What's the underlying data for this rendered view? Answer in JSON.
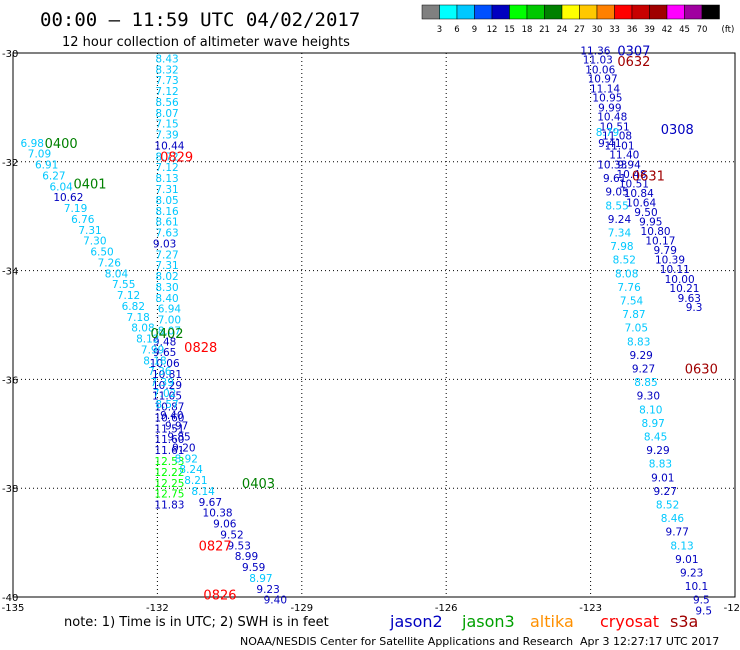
{
  "header": {
    "title": "00:00 – 11:59 UTC 04/02/2017",
    "subtitle": "12 hour collection of altimeter wave heights"
  },
  "legend": {
    "colors": [
      "#808080",
      "#00ffff",
      "#00c8ff",
      "#0050ff",
      "#0000c0",
      "#00ff00",
      "#00c800",
      "#008000",
      "#ffff00",
      "#ffc800",
      "#ff8000",
      "#ff0000",
      "#c80000",
      "#a00000",
      "#ff00ff",
      "#a000a0",
      "#000000"
    ],
    "labels": [
      "3",
      "6",
      "9",
      "12",
      "15",
      "18",
      "21",
      "24",
      "27",
      "30",
      "33",
      "36",
      "39",
      "42",
      "45",
      "70"
    ],
    "unit": "(ft)"
  },
  "axes": {
    "lat_labels": [
      "-30",
      "-32",
      "-34",
      "-36",
      "-38",
      "-40"
    ],
    "lon_labels": [
      "-135",
      "-132",
      "-129",
      "-126",
      "-123",
      "-120"
    ]
  },
  "time_labels": [
    {
      "text": "0400",
      "color": "#008000",
      "lon": -134.0,
      "lat": -31.65
    },
    {
      "text": "0401",
      "color": "#008000",
      "lon": -133.4,
      "lat": -32.4
    },
    {
      "text": "0402",
      "color": "#008000",
      "lon": -131.8,
      "lat": -35.15
    },
    {
      "text": "0403",
      "color": "#008000",
      "lon": -129.9,
      "lat": -37.9
    },
    {
      "text": "0829",
      "color": "#ff0000",
      "lon": -131.6,
      "lat": -31.9
    },
    {
      "text": "0828",
      "color": "#ff0000",
      "lon": -131.1,
      "lat": -35.4
    },
    {
      "text": "0827",
      "color": "#ff0000",
      "lon": -130.8,
      "lat": -39.05
    },
    {
      "text": "0826",
      "color": "#ff0000",
      "lon": -130.7,
      "lat": -39.95
    },
    {
      "text": "0307",
      "color": "#0000c0",
      "lon": -122.1,
      "lat": -29.95
    },
    {
      "text": "0308",
      "color": "#0000c0",
      "lon": -121.2,
      "lat": -31.4
    },
    {
      "text": "0632",
      "color": "#a00000",
      "lon": -122.1,
      "lat": -30.15
    },
    {
      "text": "0631",
      "color": "#a00000",
      "lon": -121.8,
      "lat": -32.25
    },
    {
      "text": "0630",
      "color": "#a00000",
      "lon": -120.7,
      "lat": -35.8
    }
  ],
  "tracks": [
    {
      "name": "track-cryosat-0829",
      "points": [
        [
          "8.43",
          "#00c8ff",
          -131.8,
          -30.1
        ],
        [
          "8.32",
          "#00c8ff",
          -131.8,
          -30.3
        ],
        [
          "7.73",
          "#00c8ff",
          -131.8,
          -30.5
        ],
        [
          "7.12",
          "#00c8ff",
          -131.8,
          -30.7
        ],
        [
          "8.56",
          "#00c8ff",
          -131.8,
          -30.9
        ],
        [
          "8.07",
          "#00c8ff",
          -131.8,
          -31.1
        ],
        [
          "7.15",
          "#00c8ff",
          -131.8,
          -31.3
        ],
        [
          "7.39",
          "#00c8ff",
          -131.8,
          -31.5
        ],
        [
          "10.44",
          "#0000c0",
          -131.75,
          -31.7
        ],
        [
          "8.72",
          "#00c8ff",
          -131.8,
          -31.9
        ],
        [
          "7.12",
          "#00c8ff",
          -131.8,
          -32.1
        ],
        [
          "8.13",
          "#00c8ff",
          -131.8,
          -32.3
        ],
        [
          "7.31",
          "#00c8ff",
          -131.8,
          -32.5
        ],
        [
          "8.05",
          "#00c8ff",
          -131.8,
          -32.7
        ],
        [
          "8.16",
          "#00c8ff",
          -131.8,
          -32.9
        ],
        [
          "8.61",
          "#00c8ff",
          -131.8,
          -33.1
        ],
        [
          "7.63",
          "#00c8ff",
          -131.8,
          -33.3
        ],
        [
          "9.03",
          "#0000c0",
          -131.85,
          -33.5
        ],
        [
          "7.27",
          "#00c8ff",
          -131.8,
          -33.7
        ],
        [
          "7.31",
          "#00c8ff",
          -131.8,
          -33.9
        ],
        [
          "8.02",
          "#00c8ff",
          -131.8,
          -34.1
        ],
        [
          "8.30",
          "#00c8ff",
          -131.8,
          -34.3
        ],
        [
          "8.40",
          "#00c8ff",
          -131.8,
          -34.5
        ],
        [
          "6.94",
          "#00c8ff",
          -131.75,
          -34.7
        ],
        [
          "7.00",
          "#00c8ff",
          -131.75,
          -34.9
        ],
        [
          "8.07",
          "#00c8ff",
          -131.75,
          -35.1
        ],
        [
          "9.48",
          "#0000c0",
          -131.85,
          -35.3
        ],
        [
          "9.65",
          "#0000c0",
          -131.85,
          -35.5
        ],
        [
          "10.06",
          "#0000c0",
          -131.85,
          -35.7
        ],
        [
          "10.81",
          "#0000c0",
          -131.8,
          -35.9
        ],
        [
          "10.29",
          "#0000c0",
          -131.8,
          -36.1
        ],
        [
          "11.05",
          "#0000c0",
          -131.8,
          -36.3
        ],
        [
          "10.87",
          "#0000c0",
          -131.75,
          -36.5
        ],
        [
          "10.60",
          "#0000c0",
          -131.75,
          -36.7
        ],
        [
          "11.51",
          "#0000c0",
          -131.75,
          -36.9
        ],
        [
          "11.60",
          "#0000c0",
          -131.75,
          -37.1
        ],
        [
          "11.61",
          "#0000c0",
          -131.75,
          -37.3
        ],
        [
          "12.53",
          "#00ff00",
          -131.75,
          -37.5
        ],
        [
          "12.22",
          "#00ff00",
          -131.75,
          -37.7
        ],
        [
          "12.25",
          "#00ff00",
          -131.75,
          -37.9
        ],
        [
          "12.75",
          "#00ff00",
          -131.75,
          -38.1
        ],
        [
          "11.83",
          "#0000c0",
          -131.75,
          -38.3
        ]
      ]
    },
    {
      "name": "track-jason3-0400",
      "points": [
        [
          "6.98",
          "#00c8ff",
          -134.6,
          -31.65
        ],
        [
          "7.09",
          "#00c8ff",
          -134.45,
          -31.85
        ],
        [
          "6.91",
          "#00c8ff",
          -134.3,
          -32.05
        ],
        [
          "6.27",
          "#00c8ff",
          -134.15,
          -32.25
        ],
        [
          "6.04",
          "#00c8ff",
          -134.0,
          -32.45
        ],
        [
          "10.62",
          "#0000c0",
          -133.85,
          -32.65
        ],
        [
          "7.19",
          "#00c8ff",
          -133.7,
          -32.85
        ],
        [
          "6.76",
          "#00c8ff",
          -133.55,
          -33.05
        ],
        [
          "7.31",
          "#00c8ff",
          -133.4,
          -33.25
        ],
        [
          "7.30",
          "#00c8ff",
          -133.3,
          -33.45
        ],
        [
          "6.50",
          "#00c8ff",
          -133.15,
          -33.65
        ],
        [
          "7.26",
          "#00c8ff",
          -133.0,
          -33.85
        ],
        [
          "8.04",
          "#00c8ff",
          -132.85,
          -34.05
        ],
        [
          "7.55",
          "#00c8ff",
          -132.7,
          -34.25
        ],
        [
          "7.12",
          "#00c8ff",
          -132.6,
          -34.45
        ],
        [
          "6.82",
          "#00c8ff",
          -132.5,
          -34.65
        ],
        [
          "7.18",
          "#00c8ff",
          -132.4,
          -34.85
        ],
        [
          "8.08",
          "#00c8ff",
          -132.3,
          -35.05
        ],
        [
          "8.12",
          "#00c8ff",
          -132.2,
          -35.25
        ],
        [
          "7.99",
          "#00c8ff",
          -132.1,
          -35.45
        ],
        [
          "8.18",
          "#00c8ff",
          -132.05,
          -35.65
        ],
        [
          "7.36",
          "#00c8ff",
          -131.95,
          -35.85
        ],
        [
          "7.39",
          "#00c8ff",
          -131.9,
          -36.05
        ],
        [
          "7.02",
          "#00c8ff",
          -131.85,
          -36.25
        ],
        [
          "8.57",
          "#00c8ff",
          -131.8,
          -36.45
        ],
        [
          "9.40",
          "#0000c0",
          -131.7,
          -36.65
        ],
        [
          "9.97",
          "#0000c0",
          -131.6,
          -36.85
        ],
        [
          "9.85",
          "#0000c0",
          -131.55,
          -37.05
        ],
        [
          "9.20",
          "#0000c0",
          -131.45,
          -37.25
        ],
        [
          "8.92",
          "#00c8ff",
          -131.4,
          -37.45
        ],
        [
          "8.24",
          "#00c8ff",
          -131.3,
          -37.65
        ],
        [
          "8.21",
          "#00c8ff",
          -131.2,
          -37.85
        ],
        [
          "8.14",
          "#00c8ff",
          -131.05,
          -38.05
        ],
        [
          "9.67",
          "#0000c0",
          -130.9,
          -38.25
        ],
        [
          "10.38",
          "#0000c0",
          -130.75,
          -38.45
        ],
        [
          "9.06",
          "#0000c0",
          -130.6,
          -38.65
        ],
        [
          "9.52",
          "#0000c0",
          -130.45,
          -38.85
        ],
        [
          "9.53",
          "#0000c0",
          -130.3,
          -39.05
        ],
        [
          "8.99",
          "#0000c0",
          -130.15,
          -39.25
        ],
        [
          "9.59",
          "#0000c0",
          -130.0,
          -39.45
        ],
        [
          "8.97",
          "#00c8ff",
          -129.85,
          -39.65
        ],
        [
          "9.23",
          "#0000c0",
          -129.7,
          -39.85
        ],
        [
          "9.40",
          "#0000c0",
          -129.55,
          -40.05
        ]
      ]
    },
    {
      "name": "track-jason2-0307",
      "points": [
        [
          "11.36",
          "#0000c0",
          -122.9,
          -29.95
        ],
        [
          "11.03",
          "#0000c0",
          -122.85,
          -30.12
        ],
        [
          "10.06",
          "#0000c0",
          -122.8,
          -30.3
        ],
        [
          "10.97",
          "#0000c0",
          -122.75,
          -30.47
        ],
        [
          "11.14",
          "#0000c0",
          -122.7,
          -30.65
        ],
        [
          "10.95",
          "#0000c0",
          -122.65,
          -30.82
        ],
        [
          "9.99",
          "#0000c0",
          -122.6,
          -31.0
        ],
        [
          "10.48",
          "#0000c0",
          -122.55,
          -31.17
        ],
        [
          "10.51",
          "#0000c0",
          -122.5,
          -31.35
        ],
        [
          "11.08",
          "#0000c0",
          -122.45,
          -31.52
        ],
        [
          "11.01",
          "#0000c0",
          -122.4,
          -31.7
        ],
        [
          "11.40",
          "#0000c0",
          -122.3,
          -31.87
        ],
        [
          "9.94",
          "#0000c0",
          -122.2,
          -32.05
        ],
        [
          "10.48",
          "#0000c0",
          -122.15,
          -32.22
        ],
        [
          "10.51",
          "#0000c0",
          -122.1,
          -32.4
        ],
        [
          "10.84",
          "#0000c0",
          -122.0,
          -32.57
        ],
        [
          "10.64",
          "#0000c0",
          -121.95,
          -32.75
        ],
        [
          "9.50",
          "#0000c0",
          -121.85,
          -32.92
        ],
        [
          "9.95",
          "#0000c0",
          -121.75,
          -33.1
        ],
        [
          "10.80",
          "#0000c0",
          -121.65,
          -33.27
        ],
        [
          "10.17",
          "#0000c0",
          -121.55,
          -33.45
        ],
        [
          "9.79",
          "#0000c0",
          -121.45,
          -33.62
        ],
        [
          "10.39",
          "#0000c0",
          -121.35,
          -33.8
        ],
        [
          "10.11",
          "#0000c0",
          -121.25,
          -33.97
        ],
        [
          "10.00",
          "#0000c0",
          -121.15,
          -34.15
        ],
        [
          "10.21",
          "#0000c0",
          -121.05,
          -34.32
        ],
        [
          "9.63",
          "#0000c0",
          -120.95,
          -34.5
        ],
        [
          "9.3",
          "#0000c0",
          -120.85,
          -34.67
        ]
      ]
    },
    {
      "name": "track-jason2-0308",
      "points": [
        [
          "8.79",
          "#00c8ff",
          -122.65,
          -31.45
        ],
        [
          "9.41",
          "#0000c0",
          -122.6,
          -31.65
        ],
        [
          "10.33",
          "#0000c0",
          -122.55,
          -32.05
        ],
        [
          "9.61",
          "#0000c0",
          -122.5,
          -32.3
        ],
        [
          "9.05",
          "#0000c0",
          -122.45,
          -32.55
        ],
        [
          "8.55",
          "#00c8ff",
          -122.45,
          -32.8
        ],
        [
          "9.24",
          "#0000c0",
          -122.4,
          -33.05
        ],
        [
          "7.34",
          "#00c8ff",
          -122.4,
          -33.3
        ],
        [
          "7.98",
          "#00c8ff",
          -122.35,
          -33.55
        ],
        [
          "8.52",
          "#00c8ff",
          -122.3,
          -33.8
        ],
        [
          "8.08",
          "#00c8ff",
          -122.25,
          -34.05
        ],
        [
          "7.76",
          "#00c8ff",
          -122.2,
          -34.3
        ],
        [
          "7.54",
          "#00c8ff",
          -122.15,
          -34.55
        ],
        [
          "7.87",
          "#00c8ff",
          -122.1,
          -34.8
        ],
        [
          "7.05",
          "#00c8ff",
          -122.05,
          -35.05
        ],
        [
          "8.83",
          "#00c8ff",
          -122.0,
          -35.3
        ],
        [
          "9.29",
          "#0000c0",
          -121.95,
          -35.55
        ],
        [
          "9.27",
          "#0000c0",
          -121.9,
          -35.8
        ],
        [
          "8.85",
          "#00c8ff",
          -121.85,
          -36.05
        ],
        [
          "9.30",
          "#0000c0",
          -121.8,
          -36.3
        ],
        [
          "8.10",
          "#00c8ff",
          -121.75,
          -36.55
        ],
        [
          "8.97",
          "#00c8ff",
          -121.7,
          -36.8
        ],
        [
          "8.45",
          "#00c8ff",
          -121.65,
          -37.05
        ],
        [
          "9.29",
          "#0000c0",
          -121.6,
          -37.3
        ],
        [
          "8.83",
          "#00c8ff",
          -121.55,
          -37.55
        ],
        [
          "9.01",
          "#0000c0",
          -121.5,
          -37.8
        ],
        [
          "9.27",
          "#0000c0",
          -121.45,
          -38.05
        ],
        [
          "8.52",
          "#00c8ff",
          -121.4,
          -38.3
        ],
        [
          "8.46",
          "#00c8ff",
          -121.3,
          -38.55
        ],
        [
          "9.77",
          "#0000c0",
          -121.2,
          -38.8
        ],
        [
          "8.13",
          "#00c8ff",
          -121.1,
          -39.05
        ],
        [
          "9.01",
          "#0000c0",
          -121.0,
          -39.3
        ],
        [
          "9.23",
          "#0000c0",
          -120.9,
          -39.55
        ],
        [
          "10.1",
          "#0000c0",
          -120.8,
          -39.8
        ],
        [
          "9.5",
          "#0000c0",
          -120.7,
          -40.05
        ],
        [
          "9.5",
          "#0000c0",
          -120.65,
          -40.25
        ]
      ]
    }
  ],
  "footer": {
    "note": "note: 1) Time is in UTC; 2) SWH is in feet",
    "satellites": [
      {
        "name": "jason2",
        "color": "#0000c0"
      },
      {
        "name": "jason3",
        "color": "#00a000"
      },
      {
        "name": "altika",
        "color": "#ff9000"
      },
      {
        "name": "cryosat",
        "color": "#ff0000"
      },
      {
        "name": "s3a",
        "color": "#a00000"
      }
    ],
    "credit": "NOAA/NESDIS Center for Satellite Applications and Research",
    "timestamp": "Apr  3 12:27:17 UTC 2017"
  }
}
